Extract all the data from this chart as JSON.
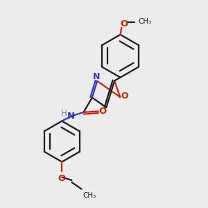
{
  "bg_color": "#ececec",
  "bond_color": "#1a1a1a",
  "n_color": "#3333cc",
  "o_color": "#cc2200",
  "h_color": "#5a8a8a",
  "lw": 1.6,
  "fs": 8.5,
  "fig_size": [
    3.0,
    3.0
  ],
  "dpi": 100,
  "xlim": [
    0,
    10
  ],
  "ylim": [
    0,
    10
  ]
}
